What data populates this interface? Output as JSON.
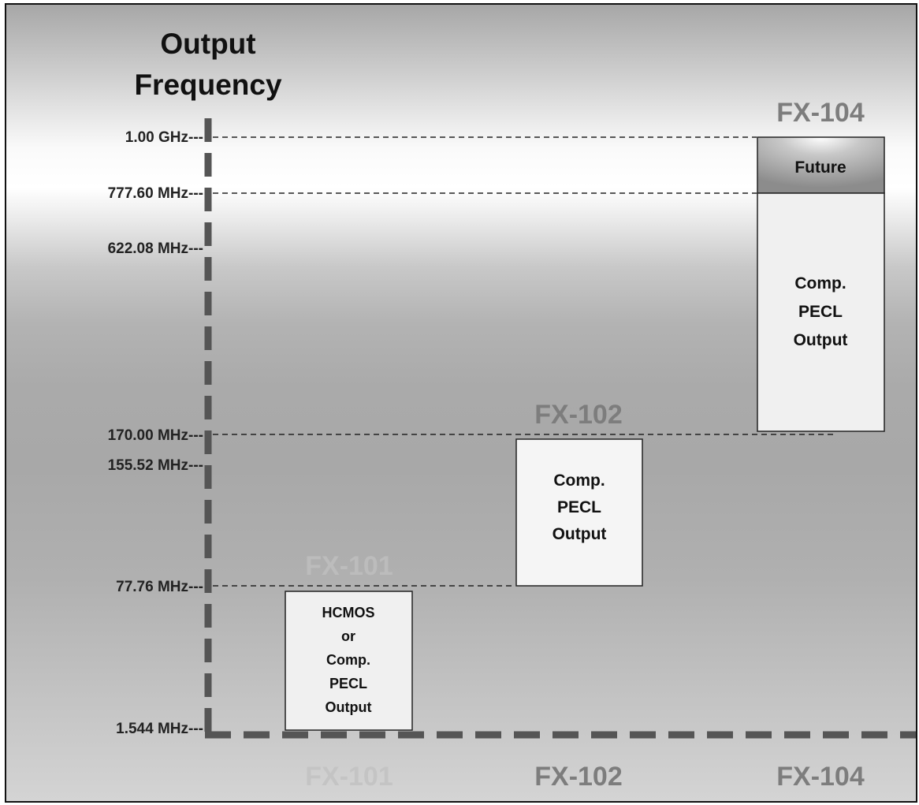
{
  "title": [
    "Output",
    "Frequency"
  ],
  "axis_labels": [
    "1.00 GHz---",
    "777.60 MHz---",
    "622.08 MHz---",
    "170.00 MHz---",
    "155.52 MHz---",
    "77.76 MHz---",
    "1.544 MHz---"
  ],
  "products": {
    "fx101": {
      "name": "FX-101",
      "color": "#bcbcbc",
      "box_lines": [
        "HCMOS",
        "or",
        "Comp.",
        "PECL",
        "Output"
      ]
    },
    "fx102": {
      "name": "FX-102",
      "color": "#7d7d7d",
      "box_lines": [
        "Comp.",
        "PECL",
        "Output"
      ]
    },
    "fx104": {
      "name": "FX-104",
      "color": "#7d7d7d",
      "box_lines": [
        "Comp.",
        "PECL",
        "Output"
      ],
      "future_label": "Future"
    }
  },
  "bottom_labels": [
    {
      "text": "FX-101",
      "color": "#c4c4c4"
    },
    {
      "text": "FX-102",
      "color": "#7d7d7d"
    },
    {
      "text": "FX-104",
      "color": "#7d7d7d"
    }
  ]
}
